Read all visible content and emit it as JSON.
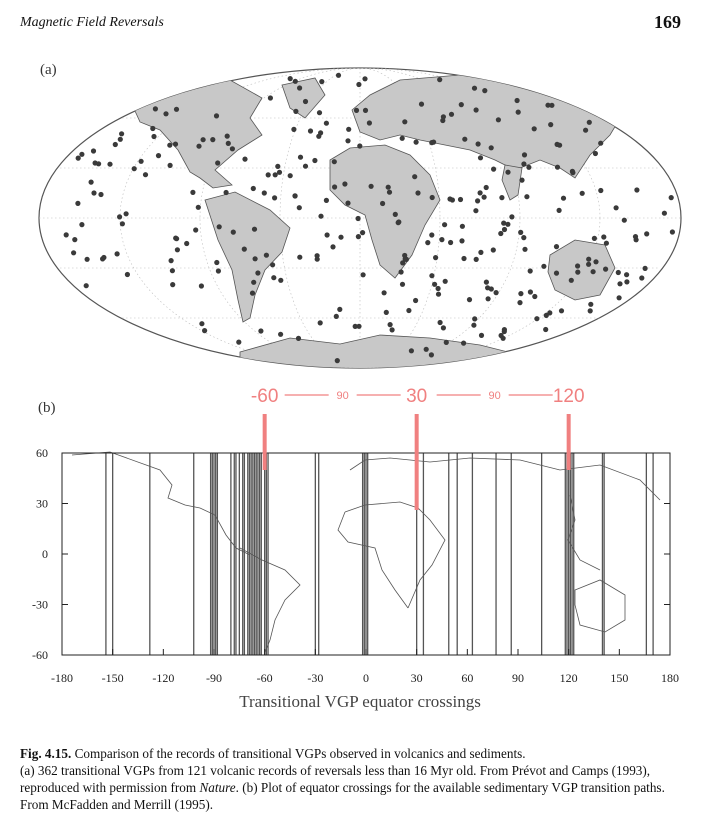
{
  "header": {
    "running_title": "Magnetic Field Reversals",
    "page_number": "169"
  },
  "panel_a": {
    "label": "(a)"
  },
  "panel_b": {
    "label": "(b)"
  },
  "colors": {
    "continent_fill": "#c8c8c8",
    "dot": "#3a3a3a",
    "crossing_line": "#555555",
    "annotation": "#f08080"
  },
  "chart_data": {
    "type": "line",
    "xlabel": "Transitional VGP equator crossings",
    "xlim": [
      -180,
      180
    ],
    "ylim": [
      -60,
      60
    ],
    "x_ticks": [
      "-180",
      "-150",
      "-120",
      "-90",
      "-60",
      "-30",
      "0",
      "30",
      "60",
      "90",
      "120",
      "150",
      "180"
    ],
    "y_ticks": [
      "60",
      "30",
      "0",
      "-30",
      "-60"
    ],
    "crossings": [
      -154,
      -150,
      -128,
      -102,
      -92,
      -91,
      -90,
      -89,
      -88,
      -80,
      -78,
      -77,
      -75,
      -73,
      -72,
      -70,
      -69,
      -68,
      -67,
      -66,
      -65,
      -64,
      -63,
      -62,
      -60,
      -59,
      -58,
      -30,
      -28,
      -2,
      -1,
      0,
      1,
      30,
      34,
      49,
      54,
      63,
      77,
      86,
      104,
      118,
      119,
      120,
      121,
      122,
      123,
      140,
      141,
      166,
      170
    ],
    "annotations": {
      "markers": [
        {
          "x": -60,
          "label": "-60"
        },
        {
          "x": 30,
          "label": "30"
        },
        {
          "x": 120,
          "label": "120"
        }
      ],
      "spans": [
        "90",
        "90"
      ]
    }
  },
  "caption": {
    "lead": "Fig. 4.15.",
    "line1": " Comparison of the records of transitional VGPs observed in volcanics and sediments.",
    "part_a": "(a) 362 transitional VGPs from 121 volcanic records of reversals less than 16 Myr old. From Prévot and Camps (1993), reproduced with permission from ",
    "journal": "Nature",
    "part_b": ". (b) Plot of equator crossings for the available sedimentary VGP transition paths. From McFadden and Merrill (1995)."
  }
}
